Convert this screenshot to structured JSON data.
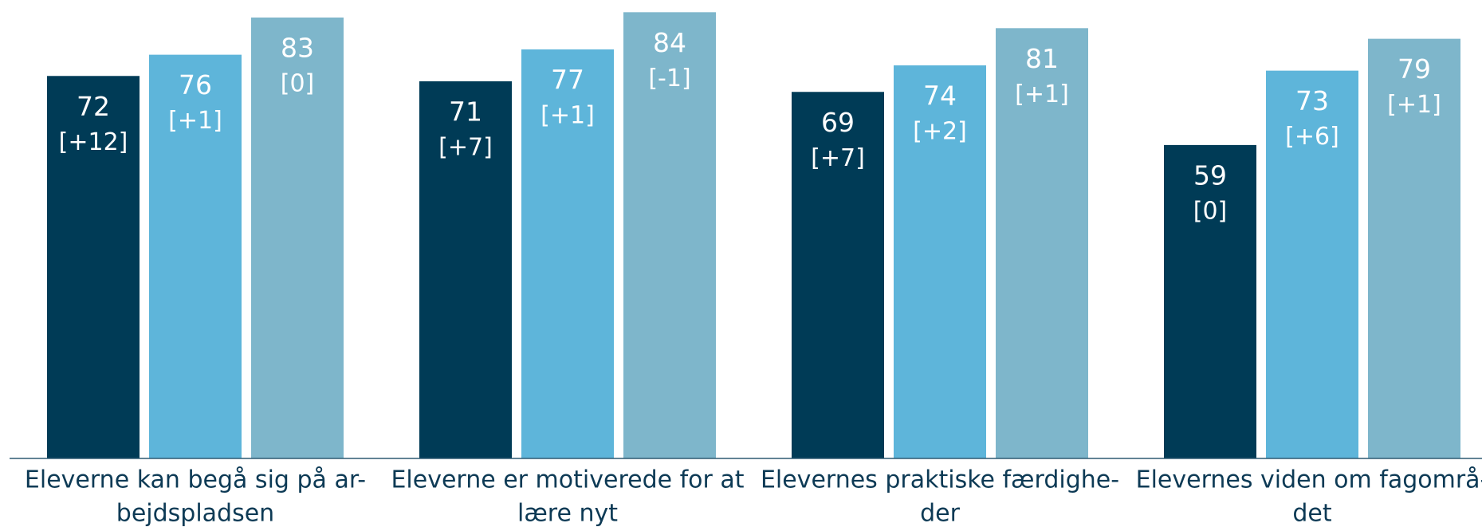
{
  "chart_data": {
    "type": "bar",
    "categories": [
      [
        "Eleverne kan begå sig på ar-",
        "bejdspladsen"
      ],
      [
        "Eleverne er motiverede for at",
        "lære nyt"
      ],
      [
        "Elevernes praktiske færdighe-",
        "der"
      ],
      [
        "Elevernes viden om fagområ-",
        "det"
      ]
    ],
    "series": [
      {
        "color": "#003b56",
        "values": [
          72,
          71,
          69,
          59
        ],
        "change_labels": [
          "[+12]",
          "[+7]",
          "[+7]",
          "[0]"
        ]
      },
      {
        "color": "#5eb5da",
        "values": [
          76,
          77,
          74,
          73
        ],
        "change_labels": [
          "[+1]",
          "[+1]",
          "[+2]",
          "[+6]"
        ]
      },
      {
        "color": "#7eb6cb",
        "values": [
          83,
          84,
          81,
          79
        ],
        "change_labels": [
          "[0]",
          "[-1]",
          "[+1]",
          "[+1]"
        ]
      }
    ],
    "ylim": [
      0,
      86
    ]
  }
}
